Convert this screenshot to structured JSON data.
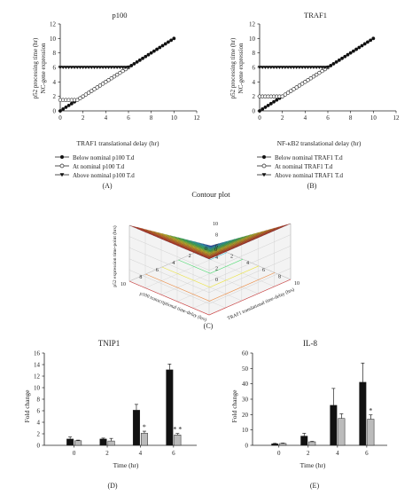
{
  "chart_data": [
    {
      "panel": "(A)",
      "type": "line",
      "title": "p100",
      "xlabel": "TRAF1 translational delay (hr)",
      "ylabel": "p52 processing time (hr) NC-gene expression",
      "ylabel_lines": [
        "p52 processing time (hr)",
        "NC-gene expression"
      ],
      "xlim": [
        0,
        12
      ],
      "ylim": [
        0,
        12
      ],
      "xticks": [
        0,
        2,
        4,
        6,
        8,
        10,
        12
      ],
      "yticks": [
        0,
        2,
        4,
        6,
        8,
        10,
        12
      ],
      "series": [
        {
          "name": "Below nominal p100 T.d",
          "marker": "filled-circle",
          "x": [
            0,
            0.25,
            0.5,
            0.75,
            1,
            1.25,
            1.5,
            1.75,
            2,
            2.25,
            2.5,
            2.75,
            3,
            3.25,
            3.5,
            3.75,
            4,
            4.25,
            4.5,
            4.75,
            5,
            5.25,
            5.5,
            5.75,
            6,
            6.25,
            6.5,
            6.75,
            7,
            7.25,
            7.5,
            7.75,
            8,
            8.25,
            8.5,
            8.75,
            9,
            9.25,
            9.5,
            9.75,
            10
          ],
          "y": [
            0,
            0.25,
            0.5,
            0.75,
            1,
            1.25,
            1.5,
            1.75,
            2,
            2.25,
            2.5,
            2.75,
            3,
            3.25,
            3.5,
            3.75,
            4,
            4.25,
            4.5,
            4.75,
            5,
            5.25,
            5.5,
            5.75,
            6,
            6.25,
            6.5,
            6.75,
            7,
            7.25,
            7.5,
            7.75,
            8,
            8.25,
            8.5,
            8.75,
            9,
            9.25,
            9.5,
            9.75,
            10
          ]
        },
        {
          "name": "At nominal p100 T.d",
          "marker": "open-circle",
          "x": [
            0,
            0.25,
            0.5,
            0.75,
            1,
            1.25,
            1.5,
            1.75,
            2,
            2.25,
            2.5,
            2.75,
            3,
            3.25,
            3.5,
            3.75,
            4,
            4.25,
            4.5,
            4.75,
            5,
            5.25,
            5.5,
            5.75,
            6
          ],
          "y": [
            1.5,
            1.5,
            1.5,
            1.5,
            1.5,
            1.5,
            1.5,
            1.75,
            2,
            2.25,
            2.5,
            2.75,
            3,
            3.25,
            3.5,
            3.75,
            4,
            4.25,
            4.5,
            4.75,
            5,
            5.25,
            5.5,
            5.75,
            6
          ]
        },
        {
          "name": "Above nominal p100 T.d",
          "marker": "filled-triangle-down",
          "x": [
            0,
            0.25,
            0.5,
            0.75,
            1,
            1.25,
            1.5,
            1.75,
            2,
            2.25,
            2.5,
            2.75,
            3,
            3.25,
            3.5,
            3.75,
            4,
            4.25,
            4.5,
            4.75,
            5,
            5.25,
            5.5,
            5.75,
            6
          ],
          "y": [
            6,
            6,
            6,
            6,
            6,
            6,
            6,
            6,
            6,
            6,
            6,
            6,
            6,
            6,
            6,
            6,
            6,
            6,
            6,
            6,
            6,
            6,
            6,
            6,
            6
          ]
        }
      ]
    },
    {
      "panel": "(B)",
      "type": "line",
      "title": "TRAF1",
      "xlabel": "NF-κB2 translational delay (hr)",
      "ylabel": "p52 processing time (hr) NC-gene expression",
      "ylabel_lines": [
        "p52 processing time (hr)",
        "NC-gene expression"
      ],
      "xlim": [
        0,
        12
      ],
      "ylim": [
        0,
        12
      ],
      "xticks": [
        0,
        2,
        4,
        6,
        8,
        10,
        12
      ],
      "yticks": [
        0,
        2,
        4,
        6,
        8,
        10,
        12
      ],
      "series": [
        {
          "name": "Below nominal TRAF1 T.d",
          "marker": "filled-circle",
          "x": [
            0,
            0.25,
            0.5,
            0.75,
            1,
            1.25,
            1.5,
            1.75,
            2,
            2.25,
            2.5,
            2.75,
            3,
            3.25,
            3.5,
            3.75,
            4,
            4.25,
            4.5,
            4.75,
            5,
            5.25,
            5.5,
            5.75,
            6,
            6.25,
            6.5,
            6.75,
            7,
            7.25,
            7.5,
            7.75,
            8,
            8.25,
            8.5,
            8.75,
            9,
            9.25,
            9.5,
            9.75,
            10
          ],
          "y": [
            0,
            0.25,
            0.5,
            0.75,
            1,
            1.25,
            1.5,
            1.75,
            2,
            2.25,
            2.5,
            2.75,
            3,
            3.25,
            3.5,
            3.75,
            4,
            4.25,
            4.5,
            4.75,
            5,
            5.25,
            5.5,
            5.75,
            6,
            6.25,
            6.5,
            6.75,
            7,
            7.25,
            7.5,
            7.75,
            8,
            8.25,
            8.5,
            8.75,
            9,
            9.25,
            9.5,
            9.75,
            10
          ]
        },
        {
          "name": "At nominal TRAF1 T.d",
          "marker": "open-circle",
          "x": [
            0,
            0.25,
            0.5,
            0.75,
            1,
            1.25,
            1.5,
            1.75,
            2,
            2.25,
            2.5,
            2.75,
            3,
            3.25,
            3.5,
            3.75,
            4,
            4.25,
            4.5,
            4.75,
            5,
            5.25,
            5.5,
            5.75,
            6
          ],
          "y": [
            2,
            2,
            2,
            2,
            2,
            2,
            2,
            2,
            2,
            2.25,
            2.5,
            2.75,
            3,
            3.25,
            3.5,
            3.75,
            4,
            4.25,
            4.5,
            4.75,
            5,
            5.25,
            5.5,
            5.75,
            6
          ]
        },
        {
          "name": "Above nominal TRAF1 T.d",
          "marker": "filled-triangle-down",
          "x": [
            0,
            0.25,
            0.5,
            0.75,
            1,
            1.25,
            1.5,
            1.75,
            2,
            2.25,
            2.5,
            2.75,
            3,
            3.25,
            3.5,
            3.75,
            4,
            4.25,
            4.5,
            4.75,
            5,
            5.25,
            5.5,
            5.75,
            6
          ],
          "y": [
            6,
            6,
            6,
            6,
            6,
            6,
            6,
            6,
            6,
            6,
            6,
            6,
            6,
            6,
            6,
            6,
            6,
            6,
            6,
            6,
            6,
            6,
            6,
            6,
            6
          ]
        }
      ]
    },
    {
      "panel": "(C)",
      "type": "heatmap",
      "subtype": "3d-surface",
      "title": "Contour plot",
      "xlabel": "p100 transcriptional time-delay (hrs)",
      "ylabel": "TRAF1 translational time-delay (hrs)",
      "zlabel": "p52 expression time-point (hrs)",
      "x_ticks": [
        0,
        2,
        4,
        6,
        8,
        10
      ],
      "y_ticks": [
        0,
        2,
        4,
        6,
        8,
        10
      ],
      "z_ticks": [
        0,
        2,
        4,
        6,
        8,
        10
      ],
      "z_range": [
        0,
        10
      ],
      "colormap": [
        "#1a2fd6",
        "#16c6e0",
        "#2ee05a",
        "#f2e81c",
        "#f2781c",
        "#d81818"
      ],
      "surface": {
        "x": [
          0,
          2,
          4,
          6,
          8,
          10
        ],
        "y": [
          0,
          2,
          4,
          6,
          8,
          10
        ],
        "z": [
          [
            0,
            2,
            4,
            6,
            8,
            10
          ],
          [
            2,
            2,
            4,
            6,
            8,
            10
          ],
          [
            4,
            4,
            4,
            6,
            8,
            10
          ],
          [
            6,
            6,
            6,
            6,
            8,
            10
          ],
          [
            8,
            8,
            8,
            8,
            8,
            10
          ],
          [
            10,
            10,
            10,
            10,
            10,
            10
          ]
        ]
      }
    },
    {
      "panel": "(D)",
      "type": "bar",
      "title": "TNIP1",
      "xlabel": "Time (hr)",
      "ylabel": "Fold change",
      "categories": [
        "0",
        "2",
        "4",
        "6"
      ],
      "ylim": [
        0,
        16
      ],
      "yticks": [
        0,
        2,
        4,
        6,
        8,
        10,
        12,
        14,
        16
      ],
      "series": [
        {
          "fill": "#111111",
          "values": [
            1.1,
            1.1,
            6.1,
            13.1
          ],
          "errors": [
            0.35,
            0.15,
            1.0,
            1.0
          ]
        },
        {
          "fill": "#bbbbbb",
          "values": [
            0.8,
            0.75,
            2.1,
            1.8
          ],
          "errors": [
            0.1,
            0.45,
            0.35,
            0.25
          ]
        }
      ],
      "annotations": [
        {
          "category": "4",
          "text": "*"
        },
        {
          "category": "6",
          "text": "* *"
        }
      ]
    },
    {
      "panel": "(E)",
      "type": "bar",
      "title": "IL-8",
      "xlabel": "Time (hr)",
      "ylabel": "Fold change",
      "categories": [
        "0",
        "2",
        "4",
        "6"
      ],
      "ylim": [
        0,
        60
      ],
      "yticks": [
        0,
        10,
        20,
        30,
        40,
        50,
        60
      ],
      "series": [
        {
          "fill": "#111111",
          "values": [
            1,
            6,
            26,
            41
          ],
          "errors": [
            0.3,
            1.8,
            11,
            12.5
          ]
        },
        {
          "fill": "#bbbbbb",
          "values": [
            1.2,
            2.3,
            17.5,
            17
          ],
          "errors": [
            0.3,
            0.3,
            3,
            2.8
          ]
        }
      ],
      "annotations": [
        {
          "category": "6",
          "text": "*"
        }
      ]
    }
  ]
}
